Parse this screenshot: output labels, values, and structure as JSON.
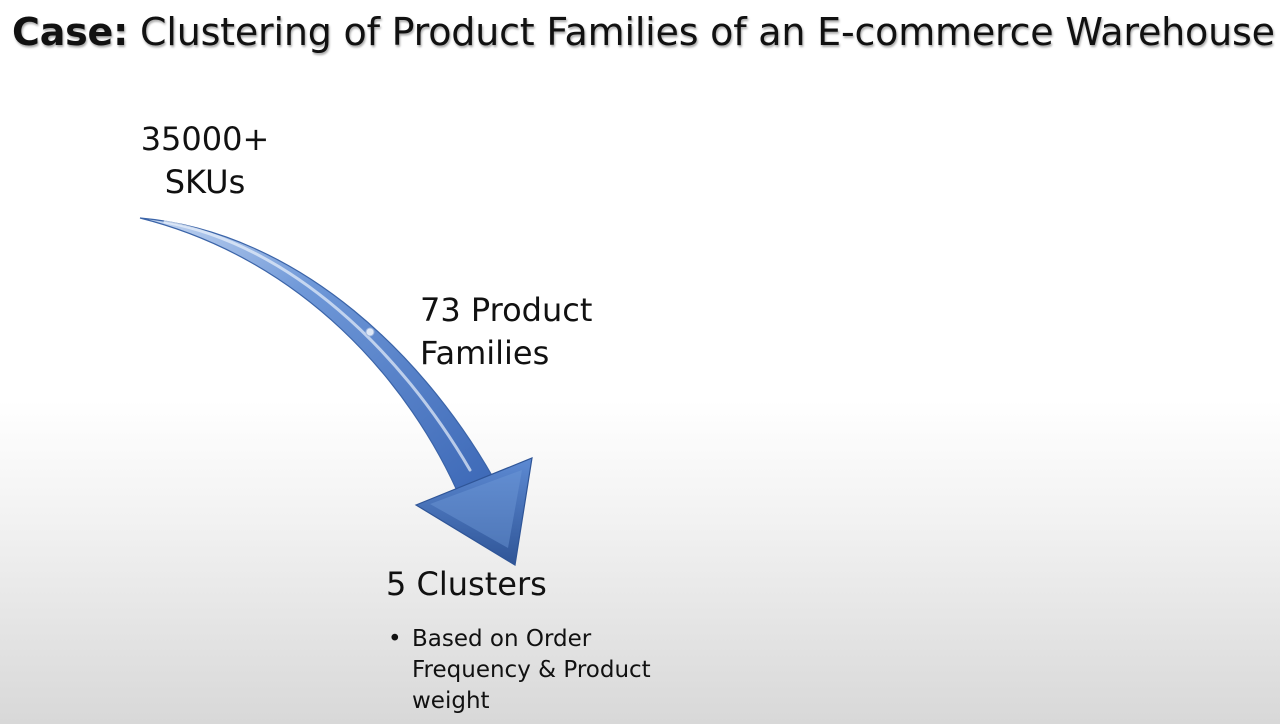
{
  "slide": {
    "title_lead": "Case:",
    "title_rest": " Clustering of Product Families of an E-commerce Warehouse"
  },
  "diagram": {
    "stages": [
      {
        "line1": "35000+",
        "line2": "SKUs"
      },
      {
        "text": "73 Product Families"
      },
      {
        "text": "5 Clusters"
      }
    ],
    "bullets": [
      "Based on Order Frequency & Product weight"
    ]
  },
  "colors": {
    "arrow_light": "#8fb3e6",
    "arrow_mid": "#4f81cf",
    "arrow_dark": "#2f5597"
  }
}
